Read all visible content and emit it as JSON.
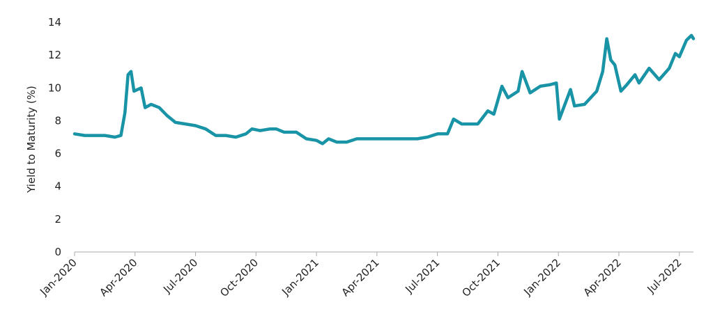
{
  "chart_data": {
    "type": "line",
    "y_label": "Yield to Maturity (%)",
    "x": [
      0,
      0.5,
      1,
      1.5,
      2,
      2.3,
      2.5,
      2.65,
      2.8,
      2.95,
      3.3,
      3.5,
      3.8,
      4.2,
      4.6,
      5,
      5.5,
      6,
      6.5,
      7,
      7.5,
      8,
      8.5,
      8.8,
      9.2,
      9.7,
      10,
      10.4,
      11,
      11.5,
      12,
      12.3,
      12.6,
      13,
      13.5,
      14,
      14.5,
      15,
      15.5,
      16,
      16.5,
      17,
      17.5,
      18,
      18.5,
      18.8,
      19.2,
      19.6,
      20,
      20.5,
      20.8,
      21.2,
      21.5,
      22,
      22.2,
      22.6,
      23.1,
      23.6,
      23.9,
      24.05,
      24.6,
      24.8,
      25.3,
      25.9,
      26.2,
      26.4,
      26.6,
      26.8,
      27.1,
      27.4,
      27.8,
      28,
      28.5,
      29,
      29.5,
      29.8,
      30,
      30.35,
      30.6,
      30.7
    ],
    "series": [
      {
        "name": "Yield to Maturity",
        "color": "#1993a6",
        "values": [
          7.2,
          7.1,
          7.1,
          7.1,
          7.0,
          7.1,
          8.5,
          10.8,
          11.0,
          9.8,
          10.0,
          8.8,
          9.0,
          8.8,
          8.3,
          7.9,
          7.8,
          7.7,
          7.5,
          7.1,
          7.1,
          7.0,
          7.2,
          7.5,
          7.4,
          7.5,
          7.5,
          7.3,
          7.3,
          6.9,
          6.8,
          6.6,
          6.9,
          6.7,
          6.7,
          6.9,
          6.9,
          6.9,
          6.9,
          6.9,
          6.9,
          6.9,
          7.0,
          7.2,
          7.2,
          8.1,
          7.8,
          7.8,
          7.8,
          8.6,
          8.4,
          10.1,
          9.4,
          9.8,
          11.0,
          9.7,
          10.1,
          10.2,
          10.3,
          8.1,
          9.9,
          8.9,
          9.0,
          9.8,
          11.0,
          13.0,
          11.7,
          11.4,
          9.8,
          10.2,
          10.8,
          10.3,
          11.2,
          10.5,
          11.2,
          12.1,
          11.9,
          12.9,
          13.2,
          13.0
        ]
      }
    ],
    "xlim": [
      0,
      30.7
    ],
    "xticks": [
      {
        "value": 0,
        "label": "Jan-2020"
      },
      {
        "value": 3,
        "label": "Apr-2020"
      },
      {
        "value": 6,
        "label": "Jul-2020"
      },
      {
        "value": 9,
        "label": "Oct-2020"
      },
      {
        "value": 12,
        "label": "Jan-2021"
      },
      {
        "value": 15,
        "label": "Apr-2021"
      },
      {
        "value": 18,
        "label": "Jul-2021"
      },
      {
        "value": 21,
        "label": "Oct-2021"
      },
      {
        "value": 24,
        "label": "Jan-2022"
      },
      {
        "value": 27,
        "label": "Apr-2022"
      },
      {
        "value": 30,
        "label": "Jul-2022"
      }
    ],
    "ylim": [
      0,
      14
    ],
    "yticks": [
      0,
      2,
      4,
      6,
      8,
      10,
      12,
      14
    ],
    "grid": false
  }
}
